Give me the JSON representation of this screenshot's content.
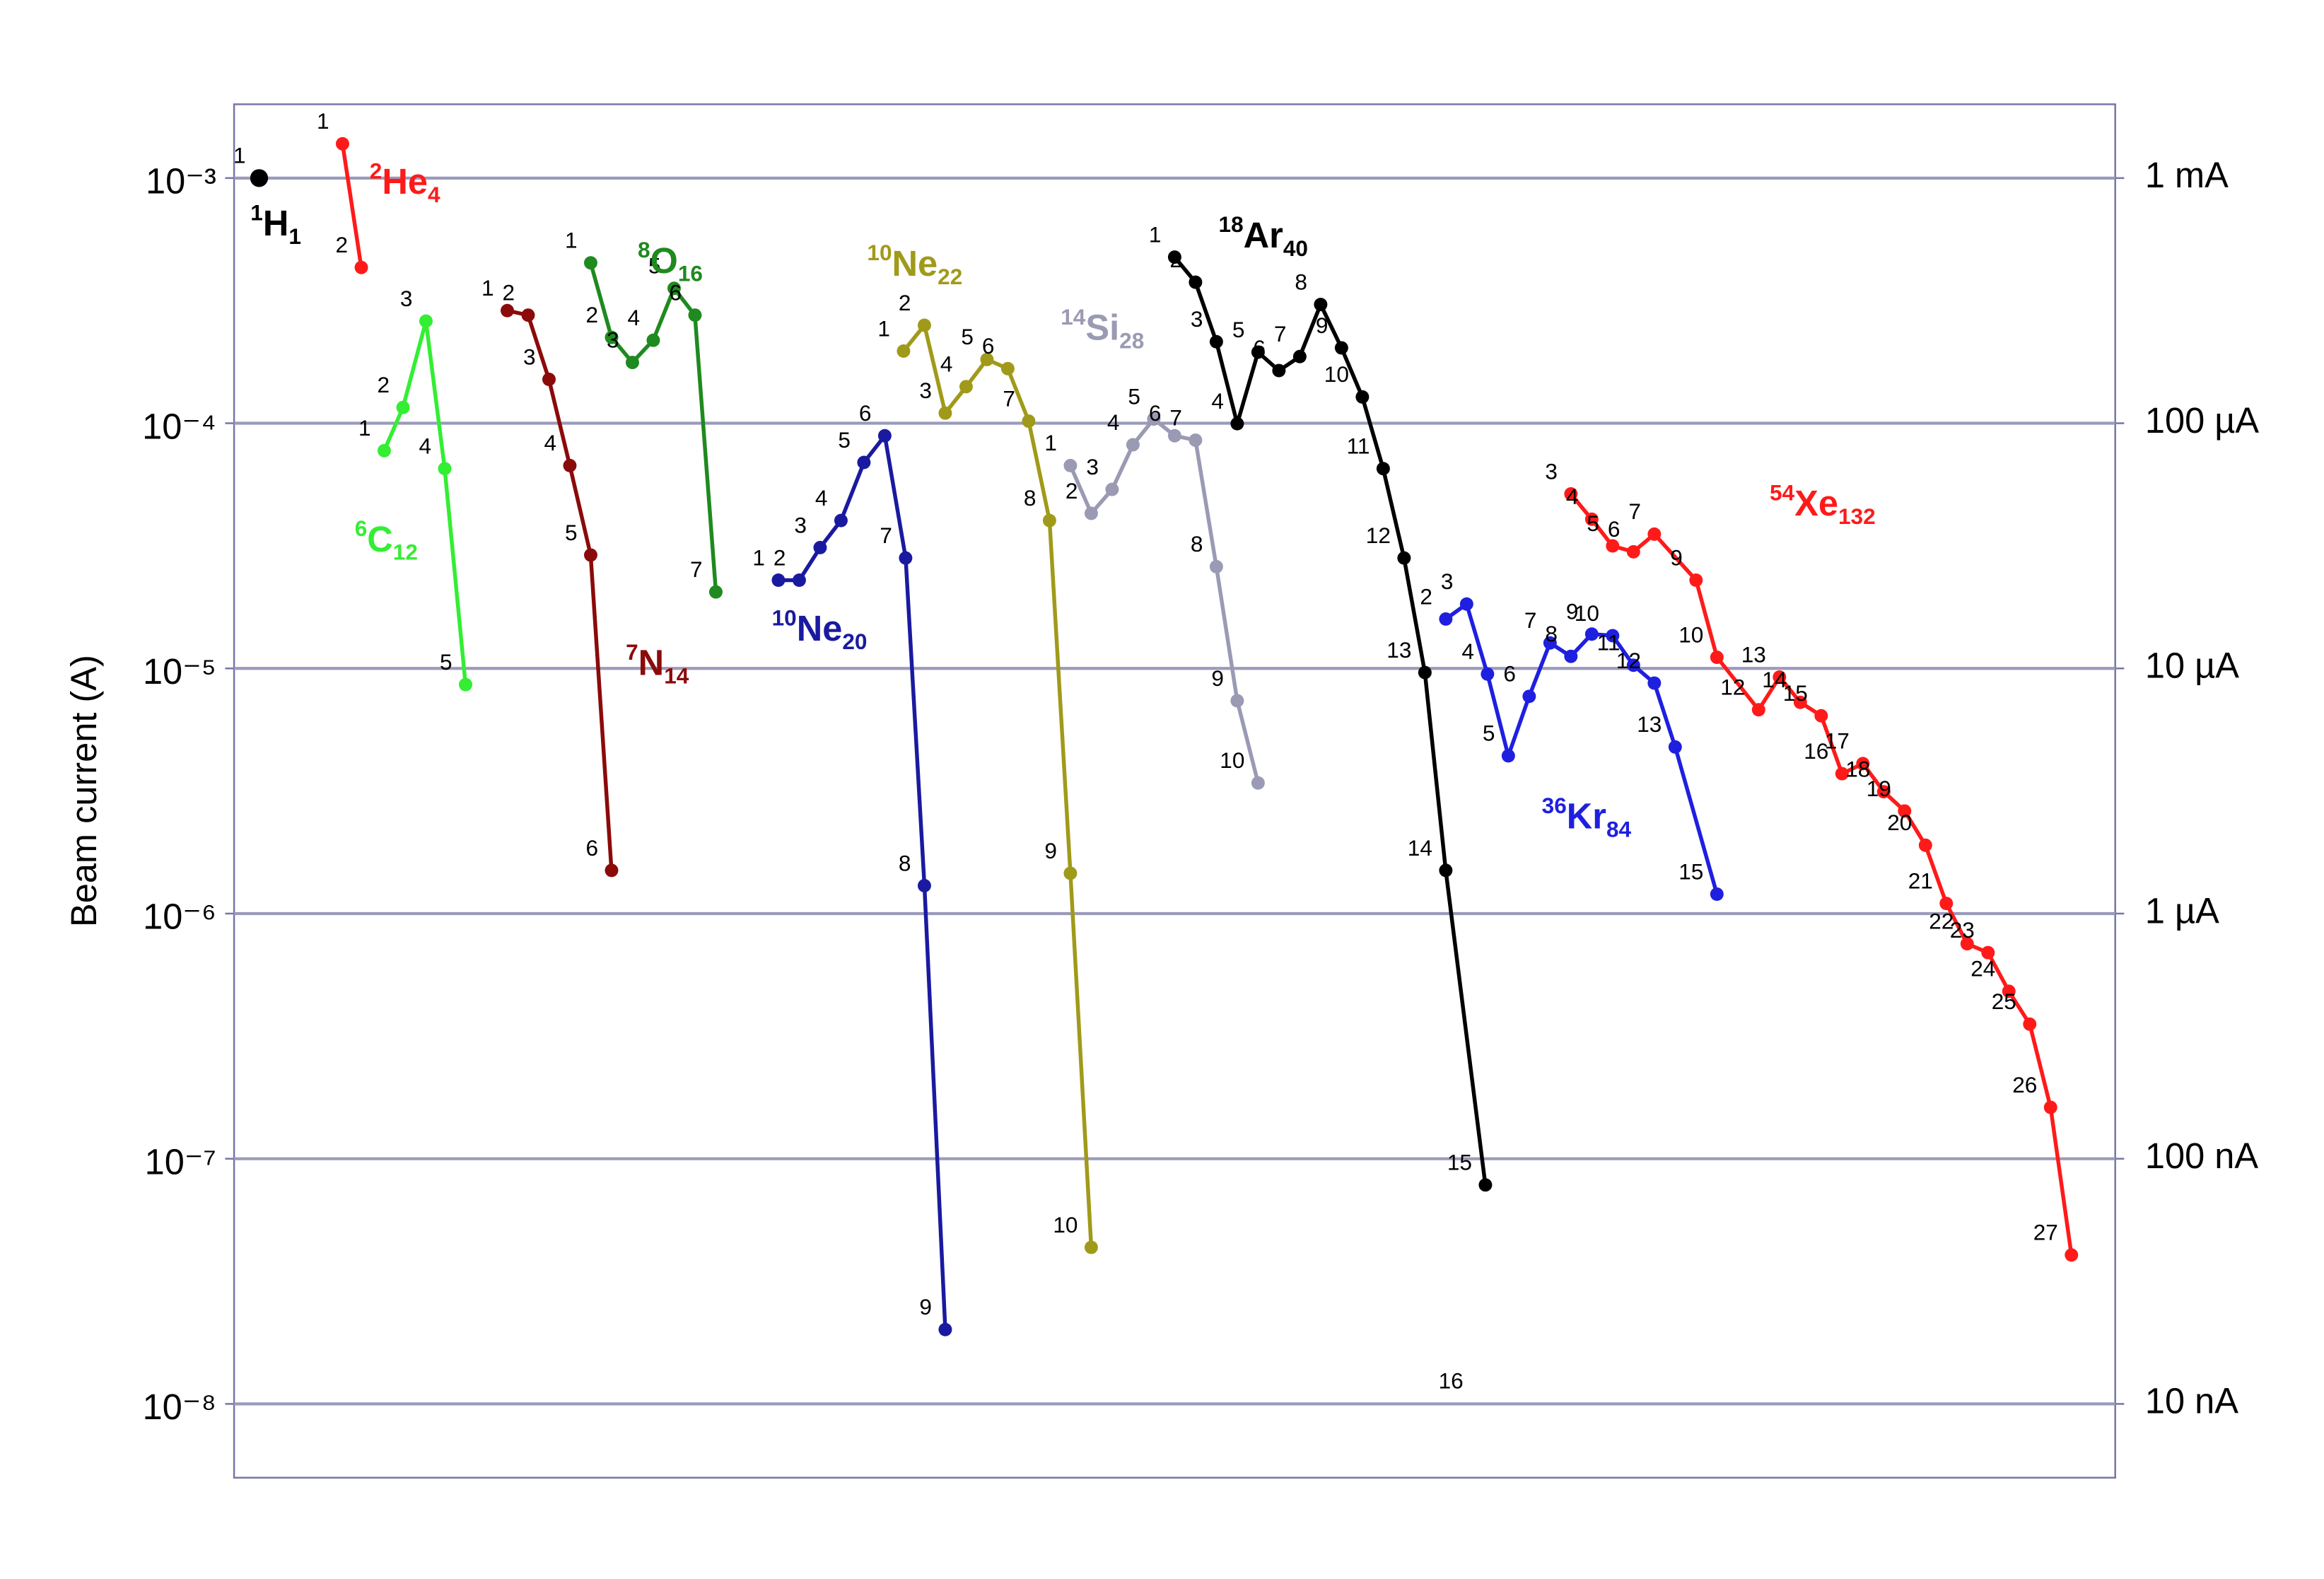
{
  "chart_data": {
    "type": "line",
    "y_label": "Beam current (A)",
    "log_y": true,
    "grid": true,
    "xlim": [
      0,
      90.2
    ],
    "ylim": [
      5e-09,
      0.002
    ],
    "yticks": [
      {
        "value": 0.001,
        "label": "10⁻³"
      },
      {
        "value": 0.0001,
        "label": "10⁻⁴"
      },
      {
        "value": 1e-05,
        "label": "10⁻⁵"
      },
      {
        "value": 1e-06,
        "label": "10⁻⁶"
      },
      {
        "value": 1e-07,
        "label": "10⁻⁷"
      },
      {
        "value": 1e-08,
        "label": "10⁻⁸"
      }
    ],
    "y2lim": [
      5e-09,
      0.002
    ],
    "y2ticks": [
      {
        "value": 0.001,
        "label": "1 mA"
      },
      {
        "value": 0.0001,
        "label": "100 µA"
      },
      {
        "value": 1e-05,
        "label": "10 µA"
      },
      {
        "value": 1e-06,
        "label": "1 µA"
      },
      {
        "value": 1e-07,
        "label": "100 nA"
      },
      {
        "value": 1e-08,
        "label": "10 nA"
      }
    ],
    "annotations": [
      {
        "text": "16"
      }
    ],
    "series": [
      {
        "name": "H",
        "z": 1,
        "a": 1,
        "color": "#000000",
        "point_labels": [
          1
        ],
        "x": [
          1.2
        ],
        "values": [
          0.001
        ]
      },
      {
        "name": "He",
        "z": 2,
        "a": 4,
        "color": "#ff1a1a",
        "point_labels": [
          1,
          2
        ],
        "x": [
          5.2,
          6.1
        ],
        "values": [
          0.00138,
          0.000432
        ]
      },
      {
        "name": "C",
        "z": 6,
        "a": 12,
        "color": "#33ee33",
        "point_labels": [
          1,
          2,
          3,
          4,
          5
        ],
        "x": [
          7.2,
          8.1,
          9.2,
          10.1,
          11.1
        ],
        "values": [
          7.73e-05,
          0.000116,
          0.000261,
          6.53e-05,
          8.59e-06
        ]
      },
      {
        "name": "N",
        "z": 7,
        "a": 14,
        "color": "#8b0a0a",
        "point_labels": [
          1,
          2,
          3,
          4,
          5,
          6
        ],
        "x": [
          13.1,
          14.1,
          15.1,
          16.1,
          17.1,
          18.1
        ],
        "values": [
          0.000288,
          0.000276,
          0.000151,
          6.72e-05,
          2.9e-05,
          1.5e-06
        ]
      },
      {
        "name": "O",
        "z": 8,
        "a": 16,
        "color": "#1f8a1f",
        "point_labels": [
          1,
          2,
          3,
          4,
          5,
          6,
          7
        ],
        "x": [
          17.1,
          18.1,
          19.1,
          20.1,
          21.1,
          22.1,
          23.1
        ],
        "values": [
          0.000451,
          0.000224,
          0.000177,
          0.000218,
          0.000355,
          0.000276,
          2.05e-05
        ]
      },
      {
        "name": "Ne",
        "z": 10,
        "a": 20,
        "color": "#1a1aa0",
        "point_labels": [
          1,
          2,
          3,
          4,
          5,
          6,
          7,
          8,
          9
        ],
        "x": [
          26.1,
          27.1,
          28.1,
          29.1,
          30.2,
          31.2,
          32.2,
          33.1,
          34.1
        ],
        "values": [
          2.29e-05,
          2.29e-05,
          3.11e-05,
          4.01e-05,
          6.92e-05,
          8.89e-05,
          2.82e-05,
          1.3e-06,
          2.01e-08
        ]
      },
      {
        "name": "Ne",
        "z": 10,
        "a": 22,
        "color": "#a09a1a",
        "point_labels": [
          1,
          2,
          3,
          4,
          5,
          6,
          7,
          8,
          9,
          10
        ],
        "x": [
          32.1,
          33.1,
          34.1,
          35.1,
          36.1,
          37.1,
          38.1,
          39.1,
          40.1,
          41.1
        ],
        "values": [
          0.000197,
          0.000251,
          0.00011,
          0.000141,
          0.000182,
          0.000167,
          0.000102,
          4.01e-05,
          1.46e-06,
          4.35e-08
        ]
      },
      {
        "name": "Si",
        "z": 14,
        "a": 28,
        "color": "#9a9ab4",
        "point_labels": [
          1,
          2,
          3,
          4,
          5,
          6,
          7,
          8,
          9,
          10
        ],
        "x": [
          40.1,
          41.1,
          42.1,
          43.1,
          44.1,
          45.1,
          46.1,
          47.1,
          48.1,
          49.1
        ],
        "values": [
          6.72e-05,
          4.29e-05,
          5.37e-05,
          8.17e-05,
          0.000104,
          8.89e-05,
          8.53e-05,
          2.6e-05,
          7.38e-06,
          3.41e-06
        ]
      },
      {
        "name": "Ar",
        "z": 18,
        "a": 40,
        "color": "#000000",
        "point_labels": [
          1,
          2,
          3,
          4,
          5,
          6,
          7,
          8,
          9,
          10,
          11,
          12,
          13,
          14,
          15
        ],
        "x": [
          45.1,
          46.1,
          47.1,
          48.1,
          49.1,
          50.1,
          51.1,
          52.1,
          53.1,
          54.1,
          55.1,
          56.1,
          57.1,
          58.1,
          60.0
        ],
        "values": [
          0.000476,
          0.000376,
          0.000215,
          9.96e-05,
          0.000195,
          0.000164,
          0.000187,
          0.000305,
          0.000203,
          0.000128,
          6.53e-05,
          2.82e-05,
          9.62e-06,
          1.5e-06,
          7.82e-08
        ]
      },
      {
        "name": "Kr",
        "z": 36,
        "a": 84,
        "color": "#1f1fe0",
        "point_labels": [
          2,
          3,
          4,
          5,
          6,
          7,
          8,
          9,
          10,
          11,
          12,
          13,
          15
        ],
        "x": [
          58.1,
          59.1,
          60.1,
          61.1,
          62.1,
          63.1,
          64.1,
          65.1,
          66.1,
          67.1,
          68.1,
          69.1,
          71.1
        ],
        "values": [
          1.59e-05,
          1.83e-05,
          9.48e-06,
          4.4e-06,
          7.69e-06,
          1.27e-05,
          1.12e-05,
          1.38e-05,
          1.36e-05,
          1.03e-05,
          8.71e-06,
          4.78e-06,
          1.2e-06
        ]
      },
      {
        "name": "Xe",
        "z": 54,
        "a": 132,
        "color": "#ff1a1a",
        "point_labels": [
          3,
          4,
          5,
          6,
          7,
          9,
          10,
          12,
          13,
          14,
          15,
          16,
          17,
          18,
          19,
          20,
          21,
          22,
          23,
          24,
          25,
          26,
          27
        ],
        "x": [
          64.1,
          65.1,
          66.1,
          67.1,
          68.1,
          70.1,
          71.1,
          73.1,
          74.1,
          75.1,
          76.1,
          77.1,
          78.1,
          79.1,
          80.1,
          81.1,
          82.1,
          83.1,
          84.1,
          85.1,
          86.1,
          87.1,
          88.1
        ],
        "values": [
          5.15e-05,
          4.06e-05,
          3.16e-05,
          2.99e-05,
          3.53e-05,
          2.29e-05,
          1.11e-05,
          6.78e-06,
          9.22e-06,
          7.27e-06,
          6.41e-06,
          3.72e-06,
          4.09e-06,
          3.14e-06,
          2.62e-06,
          1.9e-06,
          1.1e-06,
          7.53e-07,
          6.93e-07,
          4.82e-07,
          3.54e-07,
          1.62e-07,
          4.05e-08
        ]
      }
    ]
  }
}
